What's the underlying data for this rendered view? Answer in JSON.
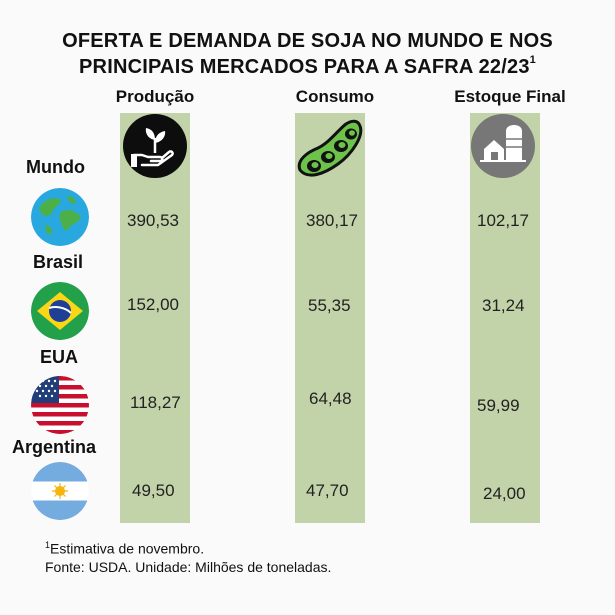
{
  "title_line1": "OFERTA E DEMANDA DE SOJA NO MUNDO E NOS",
  "title_line2": "PRINCIPAIS MERCADOS PARA A SAFRA 22/23",
  "title_sup": "1",
  "columns": [
    "Produção",
    "Consumo",
    "Estoque Final"
  ],
  "rows": [
    "Mundo",
    "Brasil",
    "EUA",
    "Argentina"
  ],
  "icons": {
    "col0": "plant-in-hand-icon",
    "col1": "soybean-pod-icon",
    "col2": "farm-silo-icon",
    "row0": "globe-icon",
    "row1": "brazil-flag-icon",
    "row2": "usa-flag-icon",
    "row3": "argentina-flag-icon"
  },
  "cells": [
    [
      "390,53",
      "380,17",
      "102,17"
    ],
    [
      "152,00",
      "55,35",
      "31,24"
    ],
    [
      "118,27",
      "64,48",
      "59,99"
    ],
    [
      "49,50",
      "47,70",
      "24,00"
    ]
  ],
  "footnote_mark": "1",
  "footnote": "Estimativa de novembro.",
  "source": "Fonte: USDA. Unidade: Milhões de toneladas.",
  "colors": {
    "column_bg": "#c2d3a9",
    "pod_green": "#6cc24a"
  },
  "chart_data": {
    "type": "table",
    "title": "OFERTA E DEMANDA DE SOJA NO MUNDO E NOS PRINCIPAIS MERCADOS PARA A SAFRA 22/23",
    "columns": [
      "Produção",
      "Consumo",
      "Estoque Final"
    ],
    "rows": [
      "Mundo",
      "Brasil",
      "EUA",
      "Argentina"
    ],
    "values": [
      [
        390.53,
        380.17,
        102.17
      ],
      [
        152.0,
        55.35,
        31.24
      ],
      [
        118.27,
        64.48,
        59.99
      ],
      [
        49.5,
        47.7,
        24.0
      ]
    ],
    "unit": "Milhões de toneladas"
  }
}
